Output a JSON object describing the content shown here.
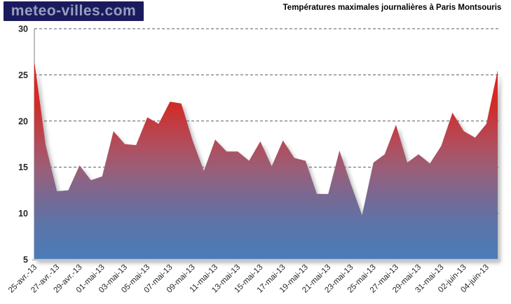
{
  "logo": {
    "text": "meteo-villes.com",
    "bg_color": "#1a1b5e",
    "text_color": "#9a9ebd"
  },
  "header": {
    "title": "Températures maximales journalières  à Paris Montsouris"
  },
  "chart_data": {
    "type": "area",
    "title": "Températures maximales journalières  à Paris Montsouris",
    "xlabel": "",
    "ylabel": "",
    "ylim": [
      5,
      30
    ],
    "yticks": [
      30,
      25,
      20,
      15,
      10,
      5
    ],
    "grid": "horizontal-dashed",
    "legend": "none",
    "x_labels": [
      "25-avr.-13",
      "27-avr.-13",
      "29-avr.-13",
      "01-mai-13",
      "03-mai-13",
      "05-mai-13",
      "07-mai-13",
      "09-mai-13",
      "11-mai-13",
      "13-mai-13",
      "15-mai-13",
      "17-mai-13",
      "19-mai-13",
      "21-mai-13",
      "23-mai-13",
      "25-mai-13",
      "27-mai-13",
      "29-mai-13",
      "31-mai-13",
      "02-juin-13",
      "04-juin-13"
    ],
    "label_step": 2,
    "values": [
      26.5,
      17.4,
      12.4,
      12.5,
      15.2,
      13.6,
      14.0,
      18.9,
      17.5,
      17.4,
      20.4,
      19.7,
      22.1,
      21.9,
      17.9,
      14.6,
      18.0,
      16.7,
      16.7,
      15.7,
      17.8,
      15.1,
      17.9,
      16.0,
      15.7,
      12.1,
      12.1,
      16.8,
      13.2,
      9.8,
      15.5,
      16.4,
      19.6,
      15.5,
      16.4,
      15.4,
      17.3,
      20.9,
      18.9,
      18.2,
      19.7,
      25.5
    ],
    "fill_gradient": [
      {
        "offset": 0,
        "color": "#ee1a1a"
      },
      {
        "offset": 0.14,
        "color": "#e02421"
      },
      {
        "offset": 0.33,
        "color": "#d02c28"
      },
      {
        "offset": 0.5,
        "color": "#b24d5c"
      },
      {
        "offset": 0.62,
        "color": "#97607b"
      },
      {
        "offset": 0.72,
        "color": "#7a6892"
      },
      {
        "offset": 0.85,
        "color": "#5b74a9"
      },
      {
        "offset": 1,
        "color": "#4a7cb8"
      }
    ],
    "grid_color": "#595959",
    "y_axis_color": "#7f7f7f",
    "x_axis_color": "#c3cbd6",
    "tick_label_color": "#262626"
  }
}
